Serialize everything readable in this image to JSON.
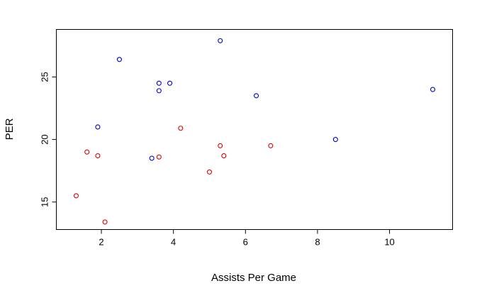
{
  "chart_data": {
    "type": "scatter",
    "title": "",
    "xlabel": "Assists Per Game",
    "ylabel": "PER",
    "xlim": [
      0.75,
      11.75
    ],
    "ylim": [
      12.8,
      28.8
    ],
    "xticks": [
      2,
      4,
      6,
      8,
      10
    ],
    "yticks": [
      15,
      20,
      25
    ],
    "grid": false,
    "legend": "none",
    "series": [
      {
        "color": "#0000cc",
        "points": [
          {
            "x": 1.9,
            "y": 21.0
          },
          {
            "x": 2.5,
            "y": 26.4
          },
          {
            "x": 3.4,
            "y": 18.5
          },
          {
            "x": 3.6,
            "y": 24.5
          },
          {
            "x": 3.6,
            "y": 23.9
          },
          {
            "x": 3.9,
            "y": 24.5
          },
          {
            "x": 5.3,
            "y": 27.9
          },
          {
            "x": 6.3,
            "y": 23.5
          },
          {
            "x": 8.5,
            "y": 20.0
          },
          {
            "x": 11.2,
            "y": 24.0
          }
        ]
      },
      {
        "color": "#dd0000",
        "points": [
          {
            "x": 1.3,
            "y": 15.5
          },
          {
            "x": 1.6,
            "y": 19.0
          },
          {
            "x": 1.9,
            "y": 18.7
          },
          {
            "x": 2.1,
            "y": 13.4
          },
          {
            "x": 3.6,
            "y": 18.6
          },
          {
            "x": 4.2,
            "y": 20.9
          },
          {
            "x": 5.0,
            "y": 17.4
          },
          {
            "x": 5.3,
            "y": 19.5
          },
          {
            "x": 5.4,
            "y": 18.7
          },
          {
            "x": 6.7,
            "y": 19.5
          }
        ]
      }
    ]
  }
}
